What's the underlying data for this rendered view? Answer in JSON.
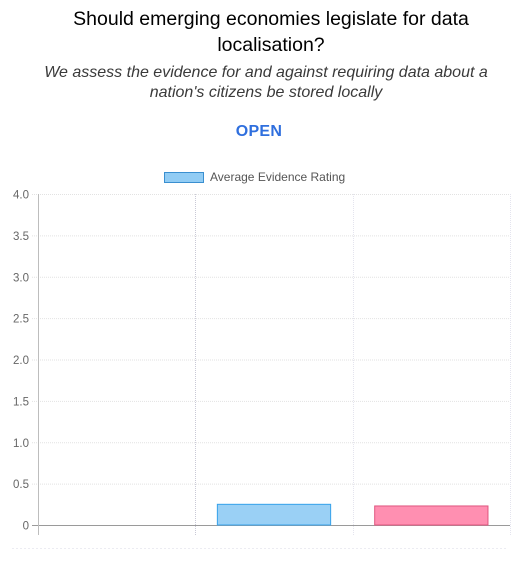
{
  "question": {
    "title": "Should emerging economies legislate for data localisation?",
    "description": "We assess the evidence for and against requiring data about a nation's citizens be stored locally",
    "status": "OPEN"
  },
  "chart_data": {
    "type": "bar",
    "legend": [
      "Average Evidence Rating"
    ],
    "categories": [
      "",
      "",
      ""
    ],
    "series": [
      {
        "name": "Average Evidence Rating",
        "values": [
          0,
          0.25,
          0.23
        ],
        "colors": [
          "#9ad0f5",
          "#9ad0f5",
          "#ff8fb1"
        ],
        "border_colors": [
          "#36a2eb",
          "#36a2eb",
          "#e0557f"
        ]
      }
    ],
    "y_ticks": [
      "4.0",
      "3.5",
      "3.0",
      "2.5",
      "2.0",
      "1.5",
      "1.0",
      "0.5",
      "0"
    ],
    "ylim": [
      0,
      4
    ],
    "grid": true,
    "legend_position": "top"
  }
}
